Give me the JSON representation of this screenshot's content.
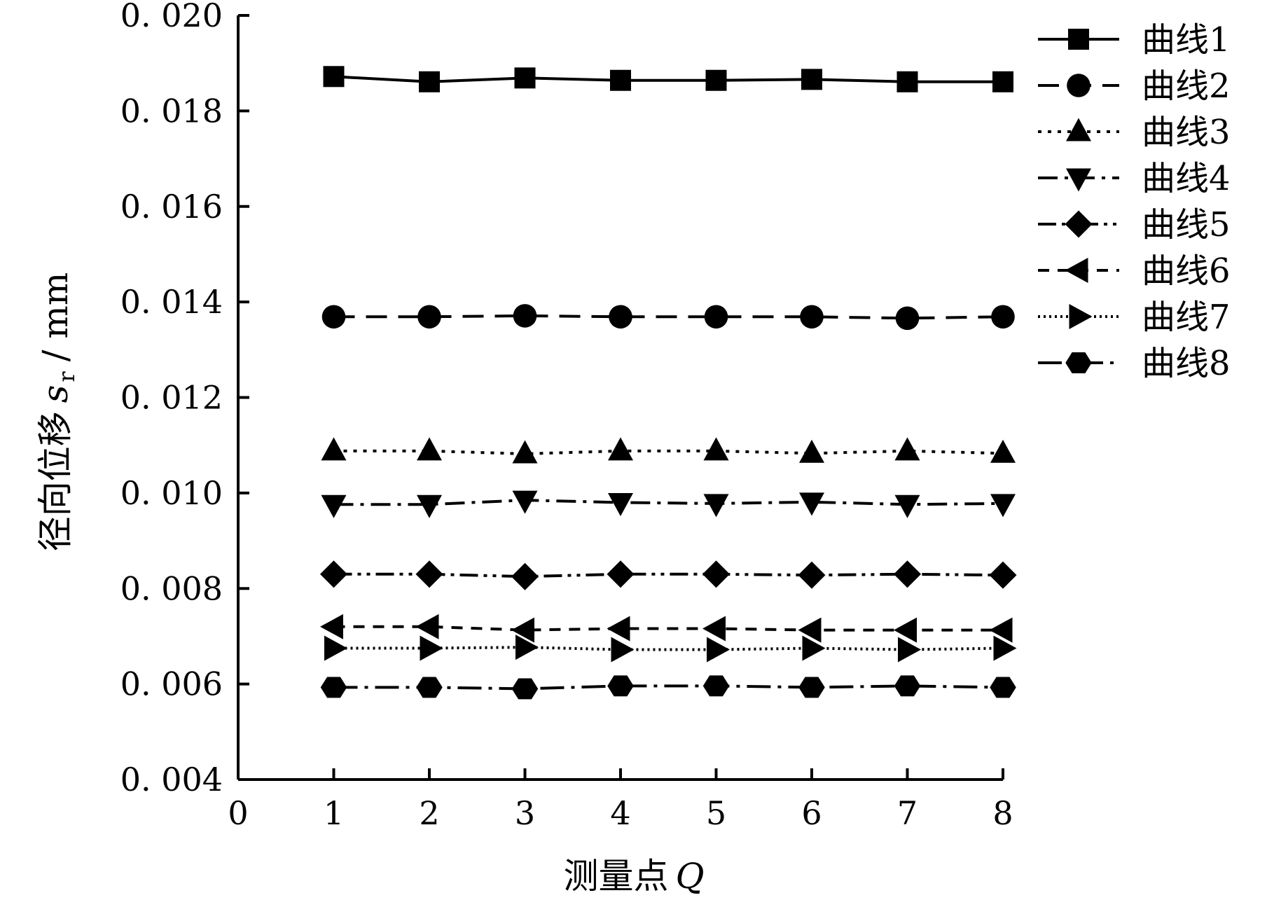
{
  "chart_data": {
    "type": "line",
    "title": "",
    "xlabel": "测量点",
    "xlabel_var": "Q",
    "ylabel": "径向位移",
    "ylabel_var": "s",
    "ylabel_sub": "r",
    "ylabel_unit": "/ mm",
    "xlim": [
      0,
      8
    ],
    "ylim": [
      0.004,
      0.02
    ],
    "x_ticks": [
      "0",
      "1",
      "2",
      "3",
      "4",
      "5",
      "6",
      "7",
      "8"
    ],
    "y_ticks": [
      "0. 004",
      "0. 006",
      "0. 008",
      "0. 010",
      "0. 012",
      "0. 014",
      "0. 016",
      "0. 018",
      "0. 020"
    ],
    "x": [
      1,
      2,
      3,
      4,
      5,
      6,
      7,
      8
    ],
    "grid": false,
    "legend_position": "top-right",
    "series": [
      {
        "name": "曲线1",
        "marker": "square",
        "dash": "solid",
        "values": [
          0.01872,
          0.01861,
          0.01869,
          0.01864,
          0.01864,
          0.01866,
          0.01861,
          0.01861
        ]
      },
      {
        "name": "曲线2",
        "marker": "circle",
        "dash": "dashed",
        "values": [
          0.01369,
          0.01369,
          0.01371,
          0.01369,
          0.01369,
          0.01369,
          0.01366,
          0.01369
        ]
      },
      {
        "name": "曲线3",
        "marker": "triangle-up",
        "dash": "dotted",
        "values": [
          0.01088,
          0.01088,
          0.01082,
          0.01088,
          0.01088,
          0.01083,
          0.01088,
          0.01083
        ]
      },
      {
        "name": "曲线4",
        "marker": "triangle-down",
        "dash": "dash-dot",
        "values": [
          0.00976,
          0.00976,
          0.00985,
          0.0098,
          0.00978,
          0.00981,
          0.00976,
          0.00978
        ]
      },
      {
        "name": "曲线5",
        "marker": "diamond",
        "dash": "dash-dot-dot",
        "values": [
          0.0083,
          0.0083,
          0.00825,
          0.0083,
          0.0083,
          0.00828,
          0.0083,
          0.00828
        ]
      },
      {
        "name": "曲线6",
        "marker": "triangle-left",
        "dash": "short-dashed",
        "values": [
          0.0072,
          0.0072,
          0.00713,
          0.00716,
          0.00716,
          0.00713,
          0.00713,
          0.00713
        ]
      },
      {
        "name": "曲线7",
        "marker": "triangle-right",
        "dash": "fine-dotted",
        "values": [
          0.00675,
          0.00675,
          0.00677,
          0.00672,
          0.00672,
          0.00675,
          0.00672,
          0.00675
        ]
      },
      {
        "name": "曲线8",
        "marker": "hexagon",
        "dash": "long-dash-dot",
        "values": [
          0.00593,
          0.00593,
          0.0059,
          0.00596,
          0.00596,
          0.00593,
          0.00596,
          0.00593
        ]
      }
    ]
  }
}
